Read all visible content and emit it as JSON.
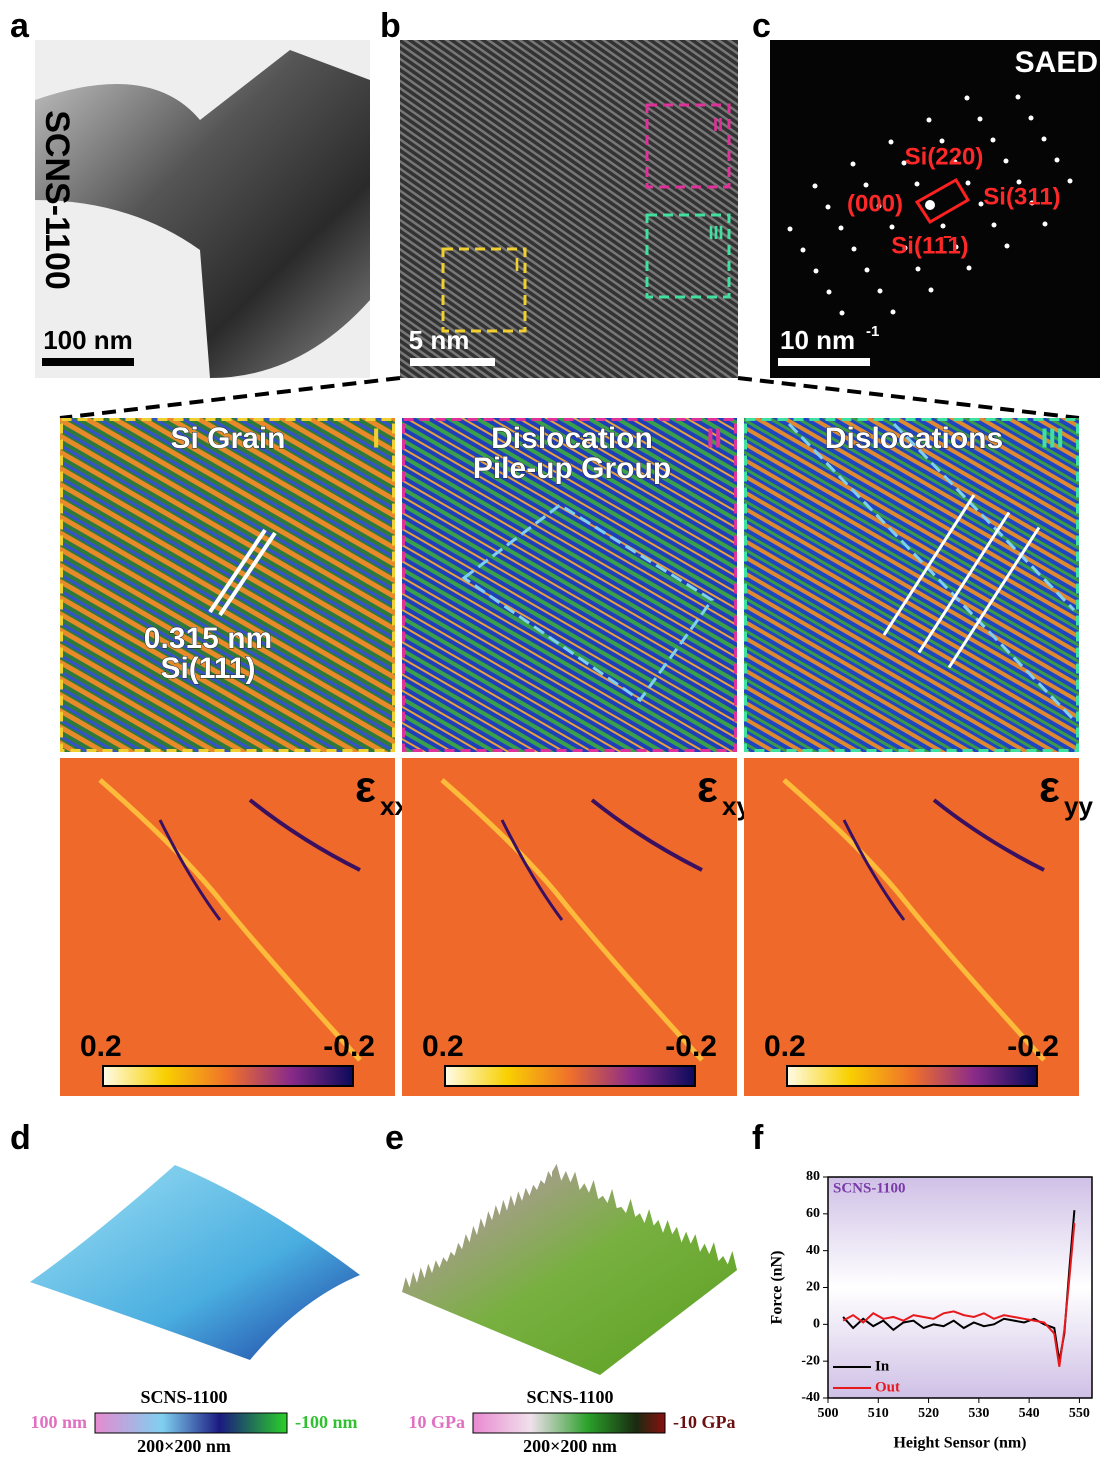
{
  "panel_labels": [
    "a",
    "b",
    "c",
    "d",
    "e",
    "f"
  ],
  "panel_a": {
    "sample": "SCNS-1100",
    "scale_bar": "100 nm"
  },
  "panel_b": {
    "scale_bar": "5 nm",
    "regions": [
      "I",
      "II",
      "III"
    ]
  },
  "panel_c": {
    "title": "SAED",
    "scale_bar": "10 nm",
    "scale_bar_exponent": "-1",
    "spots": [
      "Si(220)",
      "(000)",
      "Si(311)",
      "Si(11̄1)"
    ]
  },
  "maps": [
    {
      "title": [
        "Si Grain"
      ],
      "region": "I",
      "annotation": [
        "0.315 nm",
        "Si(111)"
      ],
      "strain": "ε",
      "strain_subscript": "xx",
      "colorbar": [
        0.2,
        -0.2
      ]
    },
    {
      "title": [
        "Dislocation",
        "Pile-up Group"
      ],
      "region": "II",
      "strain": "ε",
      "strain_subscript": "xy",
      "colorbar": [
        0.2,
        -0.2
      ]
    },
    {
      "title": [
        "Dislocations"
      ],
      "region": "III",
      "strain": "ε",
      "strain_subscript": "yy",
      "colorbar": [
        0.2,
        -0.2
      ]
    }
  ],
  "panel_d": {
    "sample": "SCNS-1100",
    "range_high": "100 nm",
    "range_low": "-100 nm",
    "size": "200×200 nm"
  },
  "panel_e": {
    "sample": "SCNS-1100",
    "range_high": "10 GPa",
    "range_low": "-10 GPa",
    "size": "200×200 nm"
  },
  "panel_f": {
    "type": "line",
    "title": "SCNS-1100",
    "xlabel": "Height Sensor (nm)",
    "ylabel": "Force (nN)",
    "xlim": [
      500,
      552.5
    ],
    "ylim": [
      -40,
      80
    ],
    "xticks": [
      500,
      510,
      520,
      530,
      540,
      550
    ],
    "yticks": [
      -40,
      -20,
      0,
      20,
      40,
      60,
      80
    ],
    "series": [
      {
        "name": "In",
        "color": "#000000",
        "x": [
          503,
          505,
          507,
          509,
          511,
          513,
          515,
          517,
          519,
          521,
          523,
          525,
          527,
          529,
          531,
          533,
          535,
          537,
          539,
          541,
          543,
          545,
          546,
          547,
          548,
          549
        ],
        "values": [
          4,
          -2,
          3,
          -1,
          2,
          -3,
          1,
          2,
          -2,
          0,
          -1,
          2,
          -2,
          1,
          -1,
          0,
          3,
          2,
          1,
          3,
          0,
          -2,
          -20,
          -5,
          30,
          62
        ]
      },
      {
        "name": "Out",
        "color": "#e8191c",
        "x": [
          503,
          505,
          507,
          509,
          511,
          513,
          515,
          517,
          519,
          521,
          523,
          525,
          527,
          529,
          531,
          533,
          535,
          537,
          539,
          541,
          543,
          545,
          546,
          547,
          548,
          549
        ],
        "values": [
          2,
          5,
          1,
          6,
          3,
          4,
          2,
          5,
          4,
          3,
          6,
          7,
          5,
          4,
          6,
          3,
          5,
          4,
          3,
          2,
          1,
          -5,
          -23,
          -3,
          25,
          55
        ]
      }
    ]
  }
}
